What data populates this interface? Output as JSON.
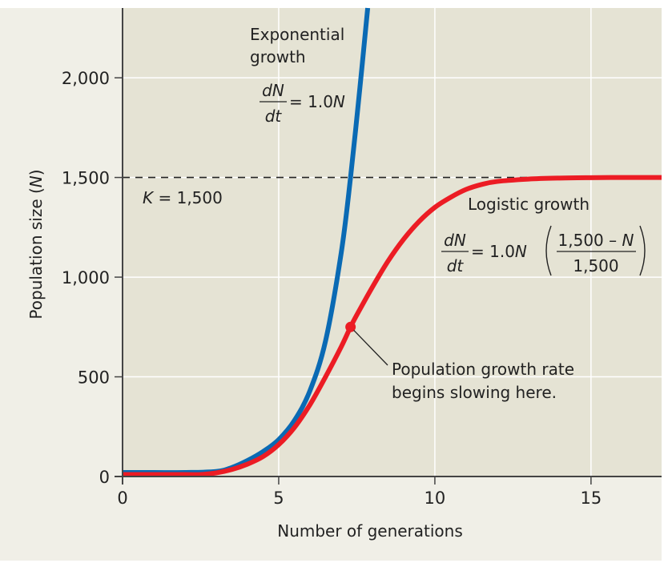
{
  "chart_data": {
    "type": "line",
    "title": "",
    "xlabel": "Number of generations",
    "ylabel_parts": [
      "Population size (",
      "N",
      ")"
    ],
    "xlim": [
      0,
      17.26
    ],
    "ylim": [
      0,
      2350
    ],
    "xticks": [
      0,
      5,
      10,
      15
    ],
    "xtick_labels": [
      "0",
      "5",
      "10",
      "15"
    ],
    "yticks": [
      0,
      500,
      1000,
      1500,
      2000
    ],
    "ytick_labels": [
      "0",
      "500",
      "1,000",
      "1,500",
      "2,000"
    ],
    "grid": true,
    "colors": {
      "exponential": "#0a6ab4",
      "logistic": "#ec1c24",
      "plot_bg": "#e5e3d4",
      "frame_bg": "#f0efe7",
      "grid": "#ffffff",
      "axis": "#444444"
    },
    "series": [
      {
        "name": "Exponential growth",
        "model": "exponential",
        "r": 1.0,
        "N0": 20,
        "x": [
          0,
          1,
          2,
          3,
          3.5,
          4,
          4.5,
          5,
          5.5,
          6,
          6.5,
          7,
          7.3,
          7.6,
          7.85
        ],
        "values": [
          20,
          20,
          20,
          25,
          45,
          80,
          125,
          185,
          280,
          430,
          680,
          1120,
          1500,
          1950,
          2350
        ]
      },
      {
        "name": "Logistic growth",
        "model": "logistic",
        "r": 1.0,
        "K": 1500,
        "x": [
          0,
          1,
          2,
          2.5,
          3,
          3.5,
          4,
          4.5,
          5,
          5.5,
          6,
          6.5,
          7,
          7.3,
          7.5,
          8,
          8.5,
          9,
          9.5,
          10,
          10.5,
          11,
          11.5,
          12,
          13,
          14,
          15,
          16,
          17.26
        ],
        "values": [
          10,
          10,
          10,
          10,
          18,
          35,
          62,
          100,
          160,
          245,
          360,
          500,
          650,
          750,
          810,
          950,
          1080,
          1190,
          1280,
          1350,
          1400,
          1440,
          1465,
          1480,
          1492,
          1497,
          1499,
          1500,
          1500
        ]
      }
    ],
    "carrying_capacity": {
      "value": 1500,
      "label_parts": [
        "K",
        " = 1,500"
      ]
    },
    "annotations": {
      "exponential_label": [
        "Exponential",
        "growth"
      ],
      "exponential_eq": {
        "num": "dN",
        "den": "dt",
        "rhs_prefix": "= 1.0",
        "rhs_var": "N"
      },
      "logistic_label": "Logistic growth",
      "logistic_eq": {
        "num": "dN",
        "den": "dt",
        "rhs_prefix": "= 1.0",
        "rhs_var": "N",
        "frac_num_prefix": "1,500 – ",
        "frac_num_var": "N",
        "frac_den": "1,500"
      },
      "inflection_point": {
        "x": 7.3,
        "y": 750,
        "text": [
          "Population growth rate",
          "begins slowing here."
        ]
      }
    }
  }
}
